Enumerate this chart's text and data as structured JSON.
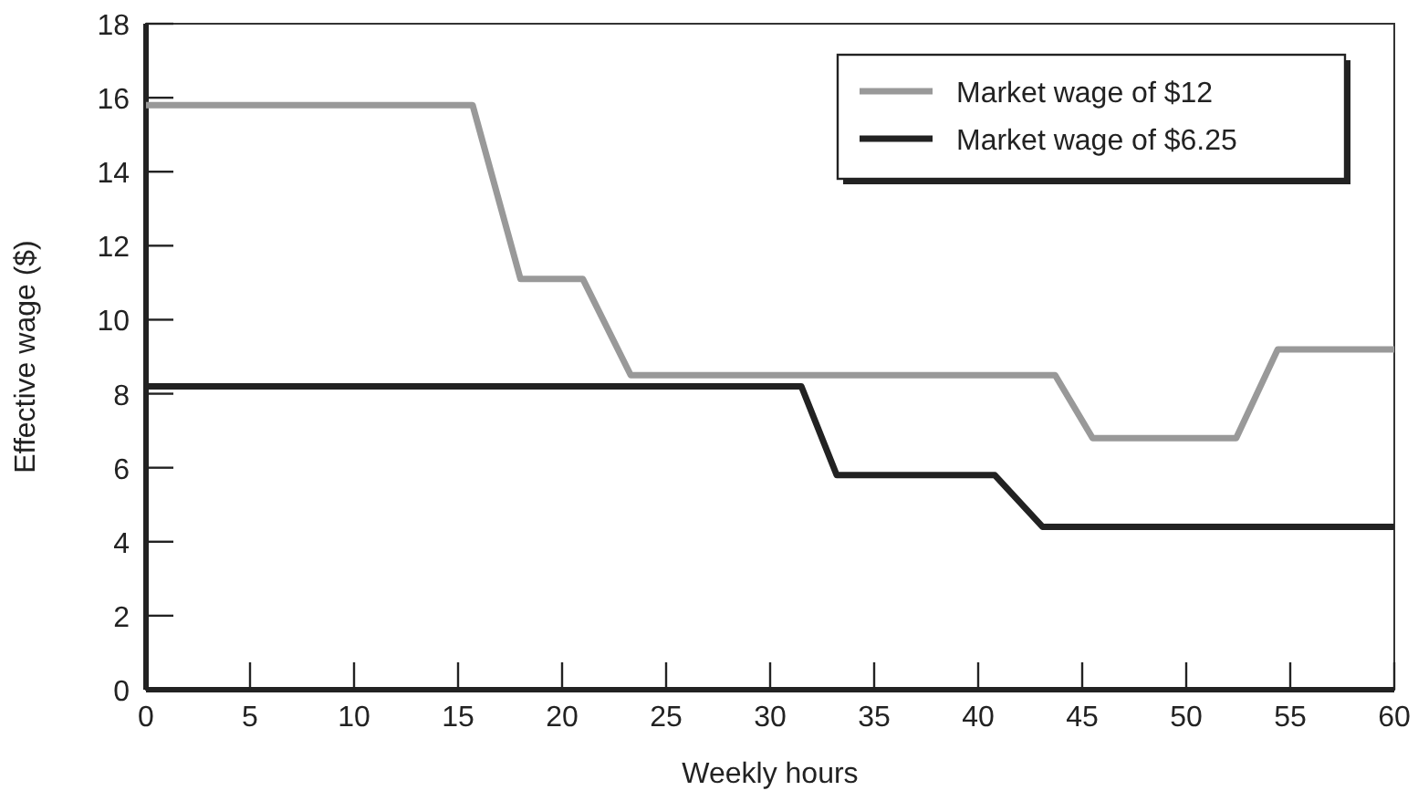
{
  "chart_data": {
    "type": "line",
    "xlabel": "Weekly hours",
    "ylabel": "Effective wage ($)",
    "xlim": [
      0,
      60
    ],
    "ylim": [
      0,
      18
    ],
    "xticks": [
      0,
      5,
      10,
      15,
      20,
      25,
      30,
      35,
      40,
      45,
      50,
      55,
      60
    ],
    "yticks": [
      0,
      2,
      4,
      6,
      8,
      10,
      12,
      14,
      16,
      18
    ],
    "legend": "top right",
    "grid": false,
    "line_style": "solid",
    "marker": "none",
    "series": [
      {
        "name": "Market wage of $12",
        "color": "#999999",
        "x": [
          0,
          15.7,
          18.0,
          21.0,
          23.3,
          43.7,
          45.5,
          52.4,
          54.4,
          60
        ],
        "values": [
          15.8,
          15.8,
          11.1,
          11.1,
          8.5,
          8.5,
          6.8,
          6.8,
          9.2,
          9.2
        ]
      },
      {
        "name": "Market wage of $6.25",
        "color": "#222222",
        "x": [
          0,
          31.5,
          33.2,
          40.8,
          43.1,
          60
        ],
        "values": [
          8.2,
          8.2,
          5.8,
          5.8,
          4.4,
          4.4
        ]
      }
    ]
  }
}
